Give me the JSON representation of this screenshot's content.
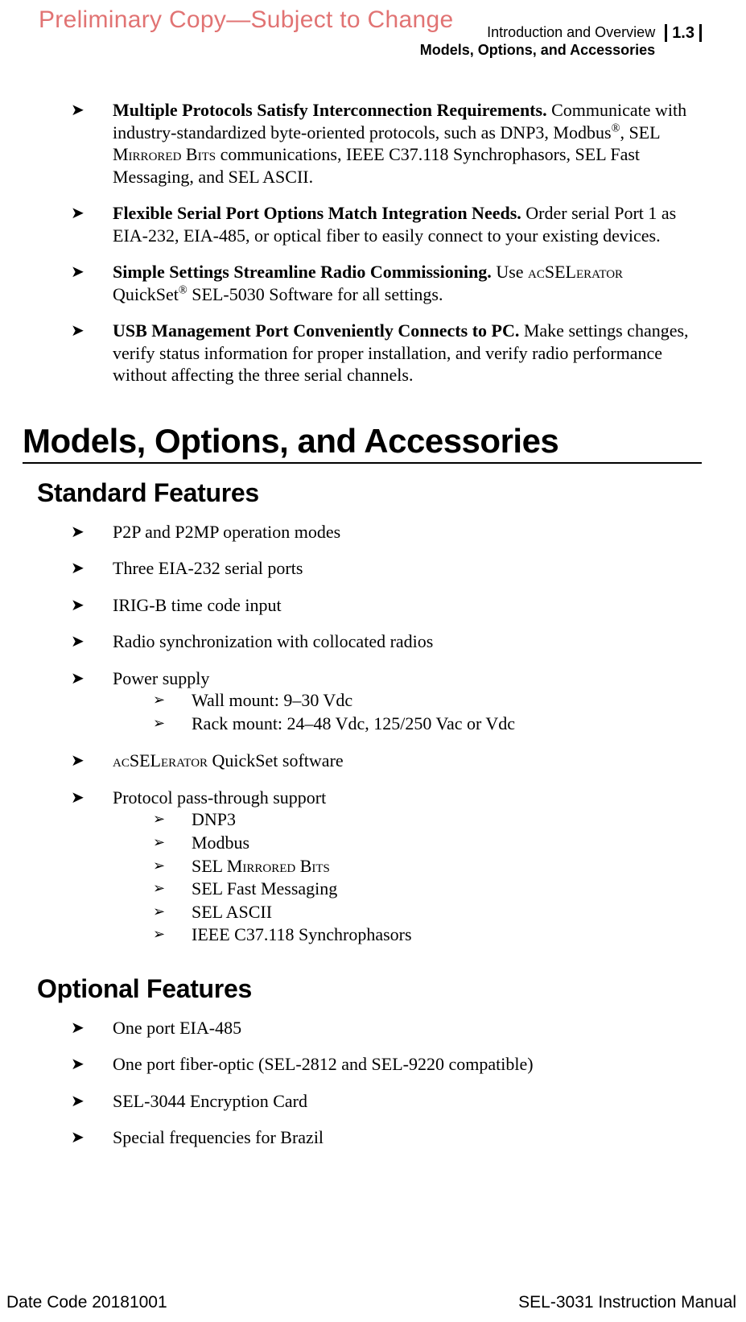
{
  "watermark": "Preliminary Copy—Subject to Change",
  "header": {
    "line1": "Introduction and Overview",
    "line2": "Models, Options, and Accessories",
    "pageNum": "1.3"
  },
  "topBullets": [
    {
      "title": "Multiple Protocols Satisfy Interconnection Requirements.",
      "bodyHtml": " Communicate with industry-standardized byte-oriented protocols, such as DNP3, Modbus<span class='sup'>®</span>, SEL <span class='smallcaps'>Mirrored Bits</span> communications, IEEE C37.118 Synchrophasors, SEL Fast Messaging, and SEL ASCII."
    },
    {
      "title": "Flexible Serial Port Options Match Integration Needs.",
      "bodyHtml": " Order serial Port 1 as EIA-232, EIA-485, or optical fiber to easily connect to your existing devices."
    },
    {
      "title": "Simple Settings Streamline Radio Commissioning.",
      "bodyHtml": " Use <span class='smallcaps'>ac</span>SEL<span class='smallcaps'>erator</span> QuickSet<span class='sup'>®</span> SEL-5030 Software for all settings."
    },
    {
      "title": "USB Management Port Conveniently Connects to PC.",
      "bodyHtml": " Make settings changes, verify status information for proper installation, and verify radio performance without affecting the three serial channels."
    }
  ],
  "sectionTitle": "Models, Options, and Accessories",
  "standardFeatures": {
    "heading": "Standard Features",
    "items": [
      {
        "html": "P2P and P2MP operation modes"
      },
      {
        "html": "Three EIA-232 serial ports"
      },
      {
        "html": "IRIG-B time code input"
      },
      {
        "html": "Radio synchronization with collocated radios"
      },
      {
        "html": "Power supply",
        "sub": [
          "Wall mount: 9–30 Vdc",
          "Rack mount: 24–48 Vdc, 125/250 Vac or Vdc"
        ]
      },
      {
        "html": "<span class='smallcaps'>ac</span>SEL<span class='smallcaps'>erator</span> QuickSet software"
      },
      {
        "html": "Protocol pass-through support",
        "sub": [
          "DNP3",
          "Modbus",
          "SEL <span class='smallcaps'>Mirrored Bits</span>",
          "SEL Fast Messaging",
          "SEL ASCII",
          "IEEE C37.118 Synchrophasors"
        ]
      }
    ]
  },
  "optionalFeatures": {
    "heading": "Optional Features",
    "items": [
      {
        "html": "One port EIA-485"
      },
      {
        "html": "One port fiber-optic (SEL-2812 and SEL-9220 compatible)"
      },
      {
        "html": "SEL-3044 Encryption Card"
      },
      {
        "html": "Special frequencies for Brazil"
      }
    ]
  },
  "footer": {
    "left": "Date Code 20181001",
    "right": "SEL-3031 Instruction Manual"
  },
  "glyphs": {
    "bullet": "➤",
    "subBullet": "➢"
  }
}
